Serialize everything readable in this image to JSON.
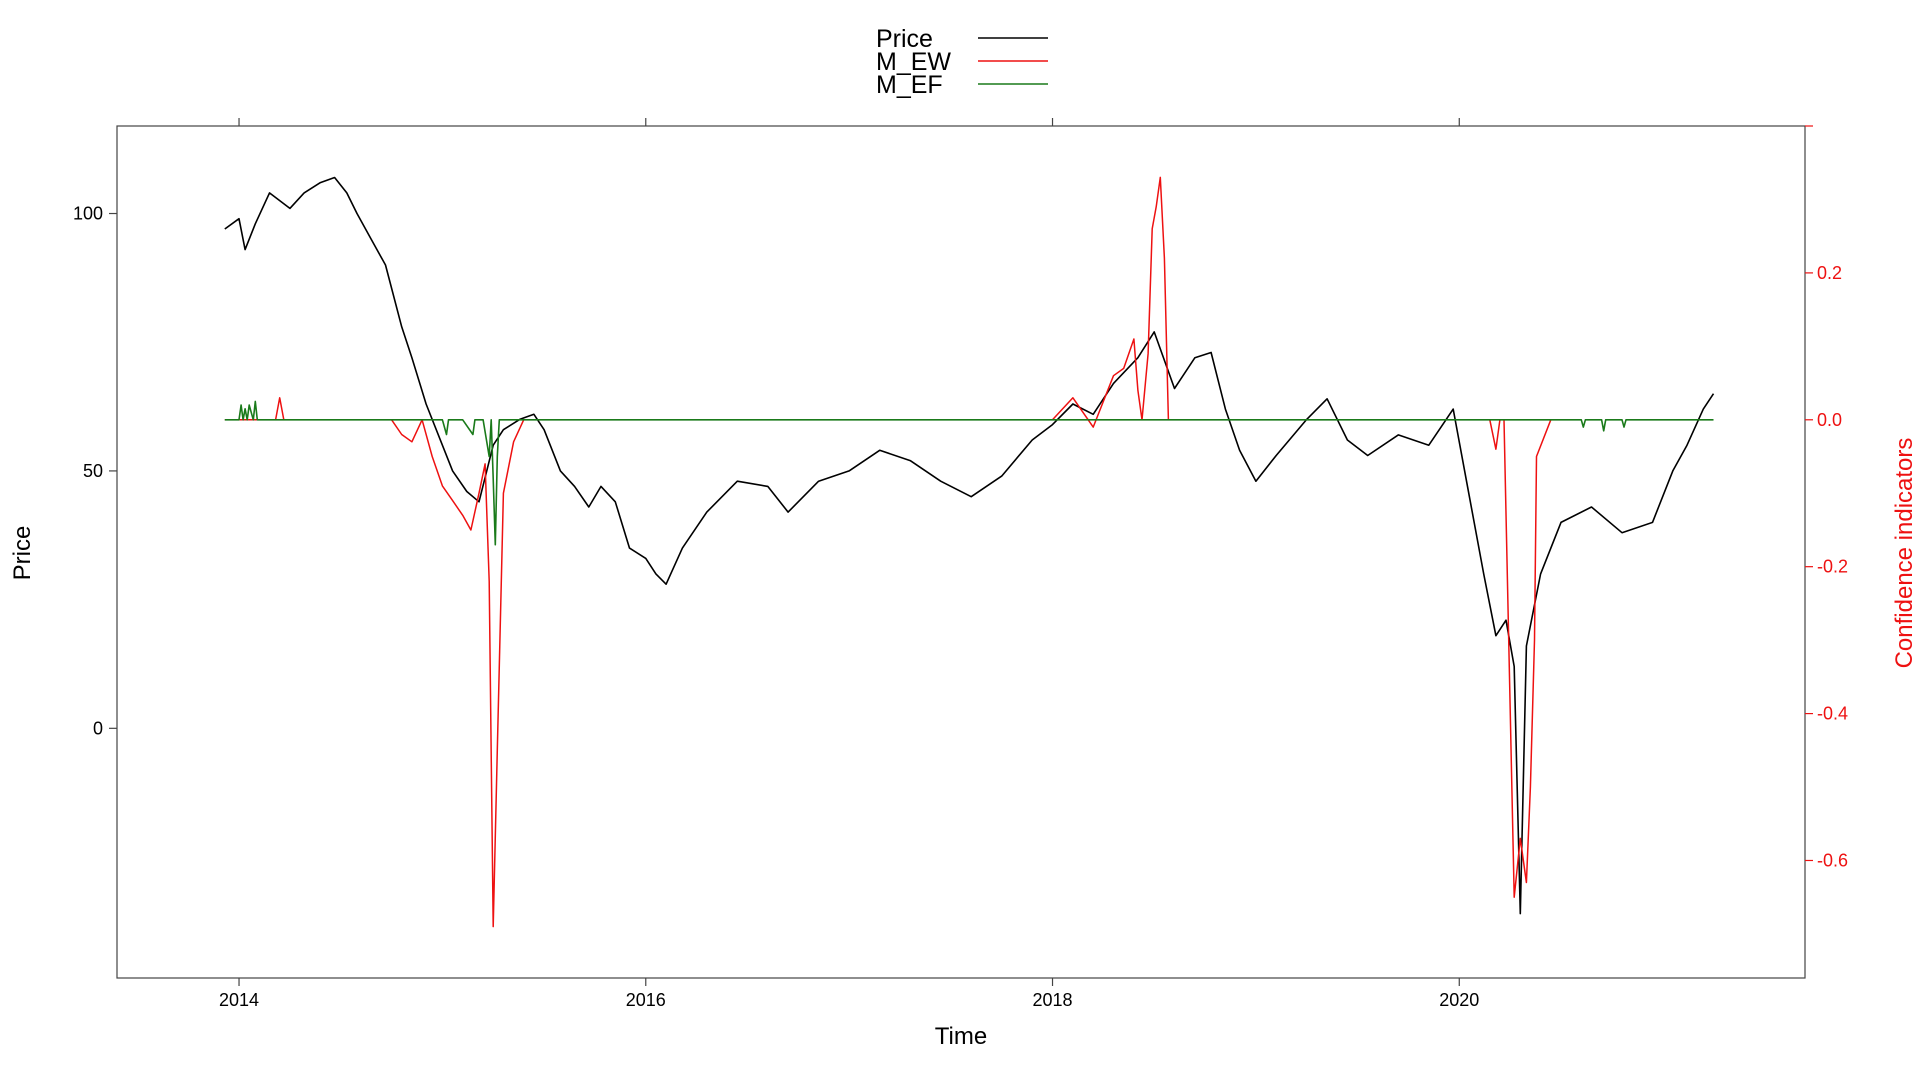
{
  "chart_data": {
    "type": "line",
    "xlabel": "Time",
    "ylabel": "Price",
    "y2label": "Confidence indicators",
    "xlim": [
      2013.4,
      2021.7
    ],
    "ylim": [
      -48.5,
      117
    ],
    "y2lim": [
      -0.76,
      0.4
    ],
    "x_ticks": [
      2014,
      2016,
      2018,
      2020
    ],
    "y_ticks": [
      0,
      50,
      100
    ],
    "y2_ticks": [
      -0.6,
      -0.4,
      -0.2,
      0.0,
      0.2
    ],
    "x_tick_labels": [
      "2014",
      "2016",
      "2018",
      "2020"
    ],
    "y_tick_labels": [
      "0",
      "50",
      "100"
    ],
    "y2_tick_labels": [
      "-0.6",
      "-0.4",
      "-0.2",
      "0.0",
      "0.2"
    ],
    "legend_position": "top-center",
    "grid": false,
    "colors": {
      "Price": "#000000",
      "M_EW": "#ee1111",
      "M_EF": "#1a7a1a",
      "right_axis": "#ee1111"
    },
    "series": [
      {
        "name": "Price",
        "axis": "left",
        "x": [
          2013.93,
          2014.0,
          2014.03,
          2014.08,
          2014.15,
          2014.25,
          2014.32,
          2014.4,
          2014.47,
          2014.53,
          2014.58,
          2014.65,
          2014.72,
          2014.8,
          2014.85,
          2014.92,
          2015.0,
          2015.05,
          2015.12,
          2015.18,
          2015.25,
          2015.3,
          2015.38,
          2015.45,
          2015.5,
          2015.58,
          2015.65,
          2015.72,
          2015.78,
          2015.85,
          2015.92,
          2016.0,
          2016.05,
          2016.1,
          2016.18,
          2016.3,
          2016.45,
          2016.6,
          2016.7,
          2016.85,
          2017.0,
          2017.15,
          2017.3,
          2017.45,
          2017.6,
          2017.75,
          2017.9,
          2018.0,
          2018.1,
          2018.2,
          2018.3,
          2018.42,
          2018.5,
          2018.6,
          2018.7,
          2018.78,
          2018.85,
          2018.92,
          2019.0,
          2019.1,
          2019.25,
          2019.35,
          2019.45,
          2019.55,
          2019.7,
          2019.85,
          2019.97,
          2020.05,
          2020.12,
          2020.18,
          2020.23,
          2020.27,
          2020.3,
          2020.33,
          2020.4,
          2020.5,
          2020.65,
          2020.8,
          2020.95,
          2021.05,
          2021.12,
          2021.2,
          2021.25
        ],
        "values": [
          97,
          99,
          93,
          98,
          104,
          101,
          104,
          106,
          107,
          104,
          100,
          95,
          90,
          78,
          72,
          63,
          55,
          50,
          46,
          44,
          55,
          58,
          60,
          61,
          58,
          50,
          47,
          43,
          47,
          44,
          35,
          33,
          30,
          28,
          35,
          42,
          48,
          47,
          42,
          48,
          50,
          54,
          52,
          48,
          45,
          49,
          56,
          59,
          63,
          61,
          67,
          72,
          77,
          66,
          72,
          73,
          62,
          54,
          48,
          53,
          60,
          64,
          56,
          53,
          57,
          55,
          62,
          45,
          30,
          18,
          21,
          12,
          -36,
          16,
          30,
          40,
          43,
          38,
          40,
          50,
          55,
          62,
          65
        ]
      },
      {
        "name": "M_EW",
        "axis": "right",
        "x": [
          2013.93,
          2014.18,
          2014.2,
          2014.22,
          2014.24,
          2014.75,
          2014.8,
          2014.85,
          2014.9,
          2014.95,
          2015.0,
          2015.05,
          2015.1,
          2015.14,
          2015.18,
          2015.21,
          2015.23,
          2015.25,
          2015.27,
          2015.3,
          2015.35,
          2015.4,
          2015.45,
          2017.95,
          2018.0,
          2018.1,
          2018.2,
          2018.3,
          2018.35,
          2018.4,
          2018.42,
          2018.44,
          2018.47,
          2018.49,
          2018.51,
          2018.53,
          2018.55,
          2018.57,
          2018.6,
          2018.65,
          2020.15,
          2020.18,
          2020.2,
          2020.22,
          2020.27,
          2020.3,
          2020.33,
          2020.35,
          2020.37,
          2020.38,
          2020.45,
          2020.5
        ],
        "values": [
          0.0,
          0.0,
          0.03,
          0.0,
          0.0,
          0.0,
          -0.02,
          -0.03,
          0.0,
          -0.05,
          -0.09,
          -0.11,
          -0.13,
          -0.15,
          -0.1,
          -0.06,
          -0.22,
          -0.69,
          -0.45,
          -0.1,
          -0.03,
          0.0,
          0.0,
          0.0,
          0.0,
          0.03,
          -0.01,
          0.06,
          0.07,
          0.11,
          0.04,
          0.0,
          0.09,
          0.26,
          0.29,
          0.33,
          0.22,
          0.0,
          0.0,
          0.0,
          0.0,
          -0.04,
          0.0,
          0.0,
          -0.65,
          -0.57,
          -0.63,
          -0.5,
          -0.3,
          -0.05,
          0.0,
          0.0
        ]
      },
      {
        "name": "M_EF",
        "axis": "right",
        "x": [
          2013.93,
          2014.0,
          2014.01,
          2014.02,
          2014.03,
          2014.04,
          2014.05,
          2014.07,
          2014.08,
          2014.09,
          2014.5,
          2015.0,
          2015.02,
          2015.03,
          2015.1,
          2015.15,
          2015.16,
          2015.2,
          2015.23,
          2015.24,
          2015.25,
          2015.26,
          2015.27,
          2015.28,
          2015.3,
          2019.5,
          2020.6,
          2020.61,
          2020.62,
          2020.7,
          2020.71,
          2020.72,
          2020.8,
          2020.81,
          2020.82,
          2021.25
        ],
        "values": [
          0.0,
          0.0,
          0.02,
          0.0,
          0.015,
          0.0,
          0.02,
          0.0,
          0.025,
          0.0,
          0.0,
          0.0,
          -0.02,
          0.0,
          0.0,
          -0.02,
          0.0,
          0.0,
          -0.05,
          0.0,
          -0.08,
          -0.17,
          -0.05,
          0.0,
          0.0,
          0.0,
          0.0,
          -0.01,
          0.0,
          0.0,
          -0.015,
          0.0,
          0.0,
          -0.01,
          0.0,
          0.0
        ]
      }
    ]
  }
}
